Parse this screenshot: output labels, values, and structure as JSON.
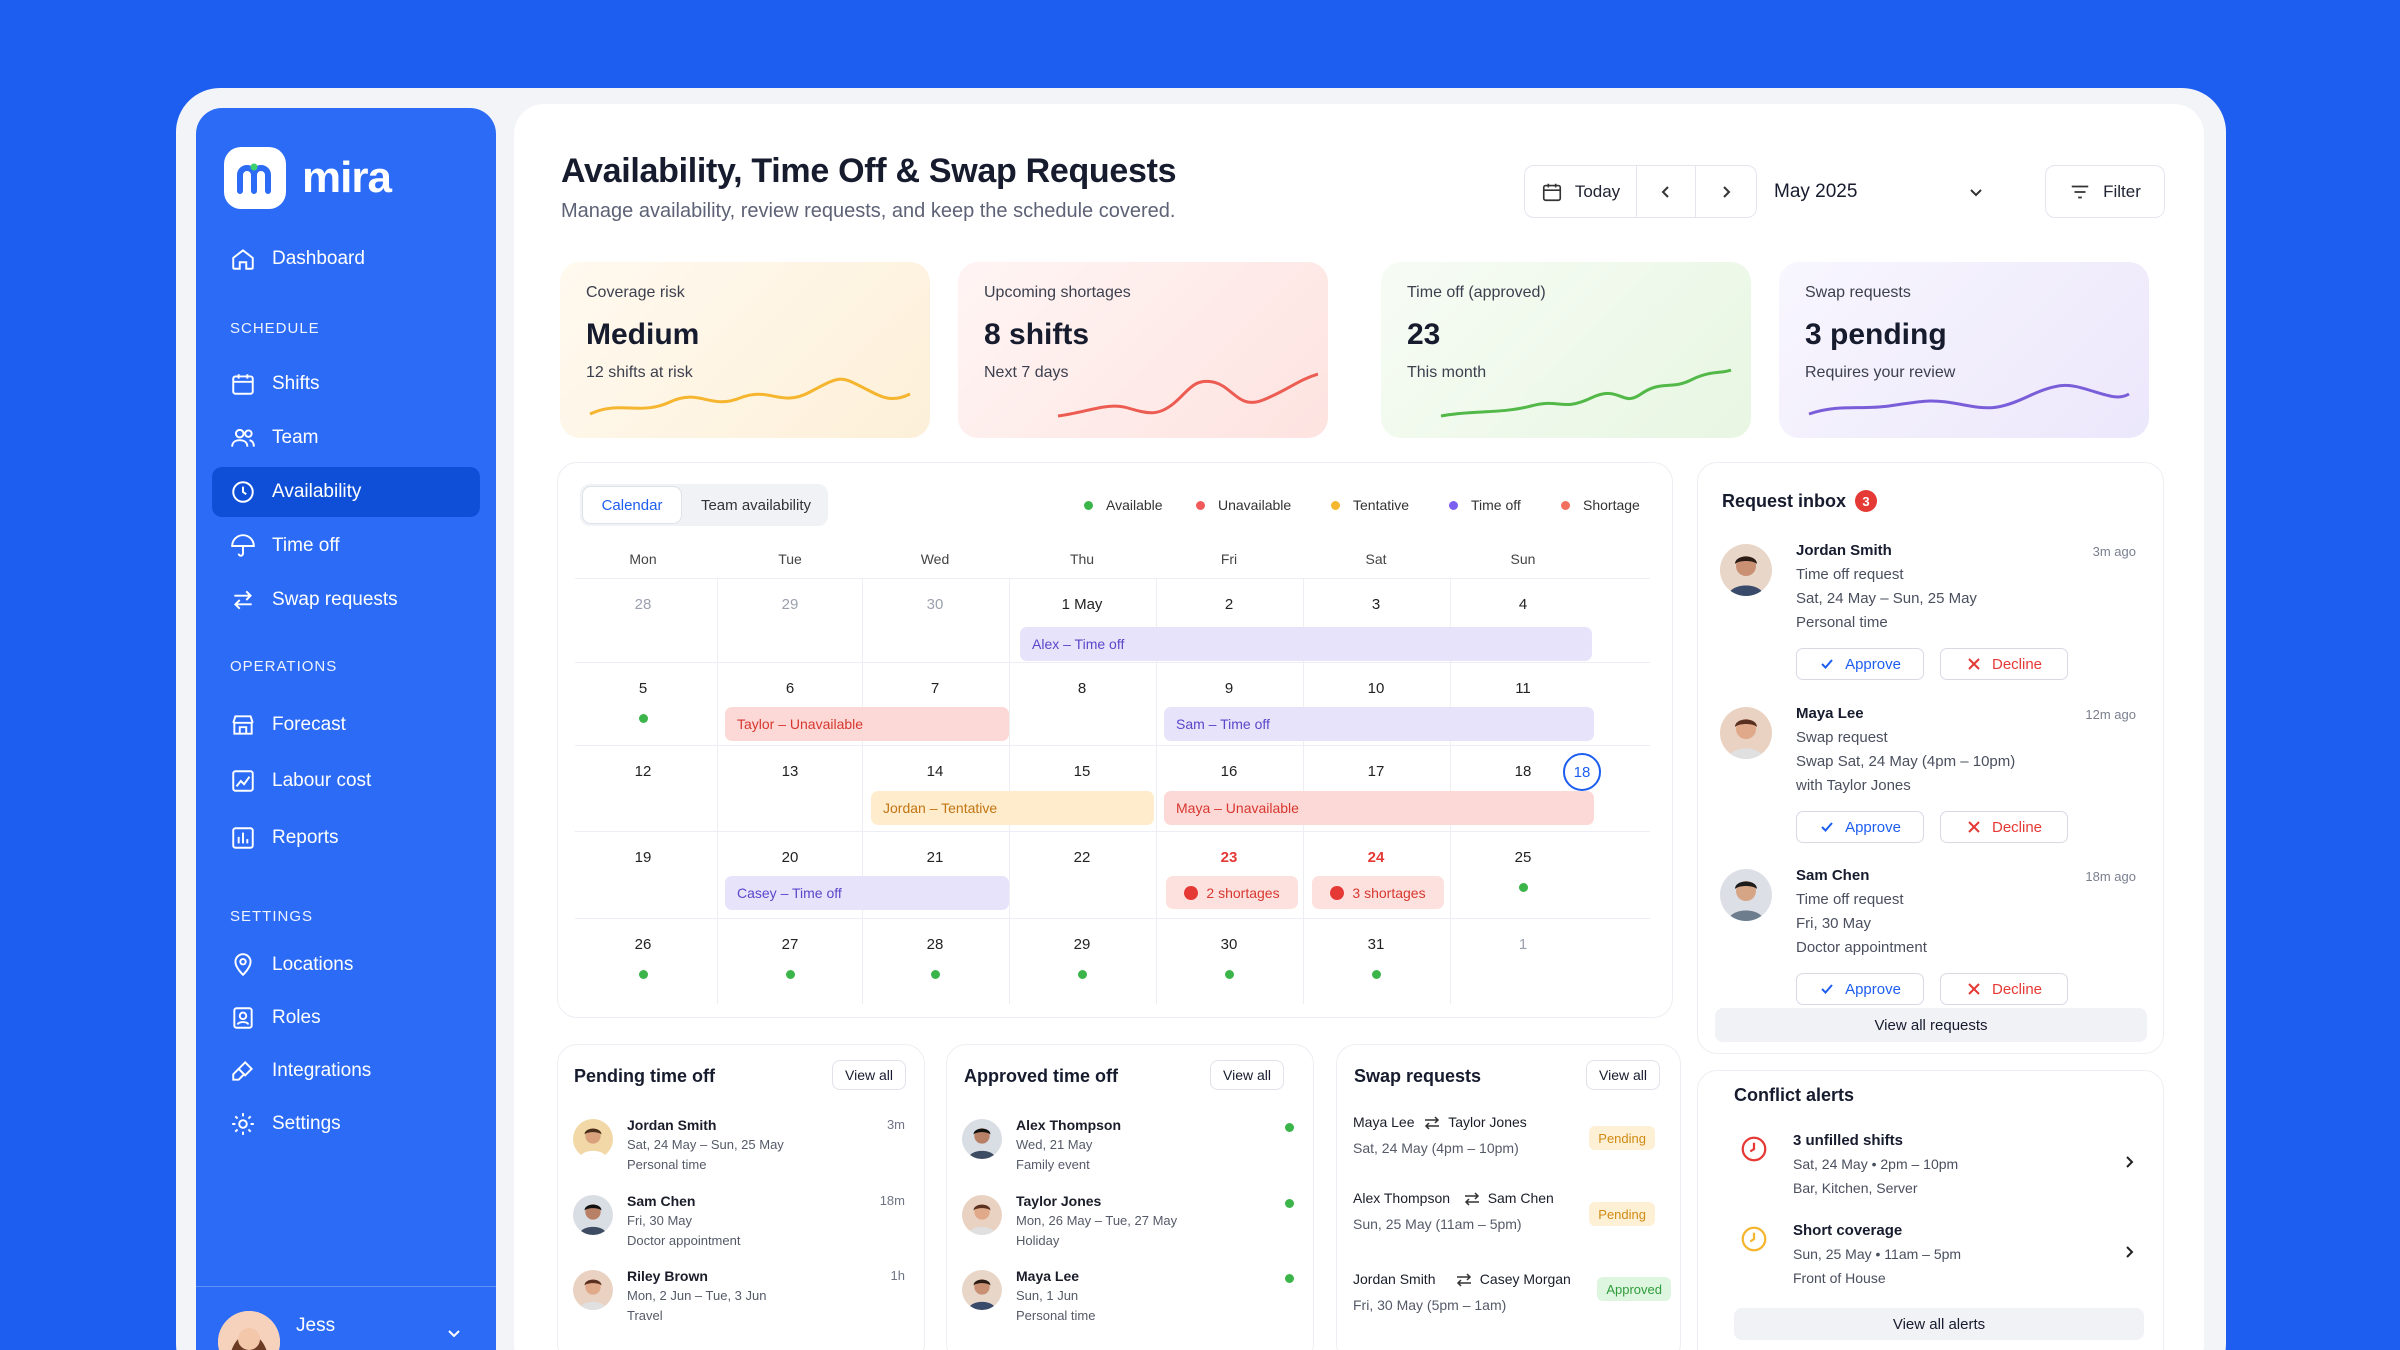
{
  "brand": {
    "name": "mira"
  },
  "nav": {
    "dashboard": "Dashboard",
    "schedule_section": "SCHEDULE",
    "shifts": "Shifts",
    "team": "Team",
    "availability": "Availability",
    "time_off": "Time off",
    "swap_requests": "Swap requests",
    "operations_section": "OPERATIONS",
    "forecast": "Forecast",
    "labour_cost": "Labour cost",
    "reports": "Reports",
    "settings_section": "SETTINGS",
    "locations": "Locations",
    "roles": "Roles",
    "integrations": "Integrations",
    "settings": "Settings"
  },
  "user": {
    "name": "Jess"
  },
  "header": {
    "title": "Availability, Time Off & Swap Requests",
    "subtitle": "Manage availability, review requests, and keep the schedule covered.",
    "today": "Today",
    "month": "May 2025",
    "filter": "Filter"
  },
  "stats": [
    {
      "label": "Coverage risk",
      "value": "Medium",
      "note": "12 shifts at risk",
      "color": "#f5b52e"
    },
    {
      "label": "Upcoming shortages",
      "value": "8 shifts",
      "note": "Next 7 days",
      "color": "#ec5c52"
    },
    {
      "label": "Time off (approved)",
      "value": "23",
      "note": "This month",
      "color": "#52b848"
    },
    {
      "label": "Swap requests",
      "value": "3 pending",
      "note": "Requires your review",
      "color": "#7a5ed9"
    }
  ],
  "calendar": {
    "tabs": [
      "Calendar",
      "Team availability"
    ],
    "legend": [
      {
        "label": "Available",
        "color": "#3bb54a"
      },
      {
        "label": "Unavailable",
        "color": "#f05a5a"
      },
      {
        "label": "Tentative",
        "color": "#f5b72e"
      },
      {
        "label": "Time off",
        "color": "#7b5ff0"
      },
      {
        "label": "Shortage",
        "color": "#f2705e"
      }
    ],
    "weekdays": [
      "Mon",
      "Tue",
      "Wed",
      "Thu",
      "Fri",
      "Sat",
      "Sun"
    ],
    "weeks": [
      [
        "28",
        "29",
        "30",
        "1 May",
        "2",
        "3",
        "4"
      ],
      [
        "5",
        "6",
        "7",
        "8",
        "9",
        "10",
        "11"
      ],
      [
        "12",
        "13",
        "14",
        "15",
        "16",
        "17",
        "18"
      ],
      [
        "19",
        "20",
        "21",
        "22",
        "23",
        "24",
        "25"
      ],
      [
        "26",
        "27",
        "28",
        "29",
        "30",
        "31",
        "1"
      ]
    ],
    "today_marker": "18",
    "events": {
      "alex": "Alex – Time off",
      "taylor": "Taylor – Unavailable",
      "sam": "Sam – Time off",
      "jordan": "Jordan – Tentative",
      "maya": "Maya – Unavailable",
      "casey": "Casey – Time off",
      "shortage_23": "2 shortages",
      "shortage_24": "3 shortages"
    }
  },
  "inbox": {
    "title": "Request inbox",
    "count": "3",
    "approve": "Approve",
    "decline": "Decline",
    "view_all": "View all requests",
    "items": [
      {
        "name": "Jordan Smith",
        "time": "3m ago",
        "type": "Time off request",
        "detail": "Sat, 24 May – Sun, 25 May",
        "note": "Personal time"
      },
      {
        "name": "Maya Lee",
        "time": "12m ago",
        "type": "Swap request",
        "detail": "Swap Sat, 24 May (4pm – 10pm)",
        "note": "with Taylor Jones"
      },
      {
        "name": "Sam Chen",
        "time": "18m ago",
        "type": "Time off request",
        "detail": "Fri, 30 May",
        "note": "Doctor appointment"
      }
    ]
  },
  "pending": {
    "title": "Pending time off",
    "view_all": "View all",
    "items": [
      {
        "name": "Jordan Smith",
        "dates": "Sat, 24 May – Sun, 25 May",
        "reason": "Personal time",
        "age": "3m"
      },
      {
        "name": "Sam Chen",
        "dates": "Fri, 30 May",
        "reason": "Doctor appointment",
        "age": "18m"
      },
      {
        "name": "Riley Brown",
        "dates": "Mon, 2 Jun – Tue, 3 Jun",
        "reason": "Travel",
        "age": "1h"
      }
    ]
  },
  "approved": {
    "title": "Approved time off",
    "view_all": "View all",
    "items": [
      {
        "name": "Alex Thompson",
        "dates": "Wed, 21 May",
        "reason": "Family event"
      },
      {
        "name": "Taylor Jones",
        "dates": "Mon, 26 May – Tue, 27 May",
        "reason": "Holiday"
      },
      {
        "name": "Maya Lee",
        "dates": "Sun, 1 Jun",
        "reason": "Personal time"
      }
    ]
  },
  "swaps": {
    "title": "Swap requests",
    "view_all": "View all",
    "items": [
      {
        "from": "Maya Lee",
        "to": "Taylor Jones",
        "shift": "Sat, 24 May (4pm – 10pm)",
        "status": "Pending"
      },
      {
        "from": "Alex Thompson",
        "to": "Sam Chen",
        "shift": "Sun, 25 May (11am – 5pm)",
        "status": "Pending"
      },
      {
        "from": "Jordan Smith",
        "to": "Casey Morgan",
        "shift": "Fri, 30 May (5pm – 1am)",
        "status": "Approved"
      }
    ]
  },
  "conflicts": {
    "title": "Conflict alerts",
    "view_all": "View all alerts",
    "items": [
      {
        "title": "3 unfilled shifts",
        "time": "Sat, 24 May • 2pm – 10pm",
        "where": "Bar, Kitchen, Server",
        "icon": "clock-icon",
        "color": "#e53935"
      },
      {
        "title": "Short coverage",
        "time": "Sun, 25 May • 11am – 5pm",
        "where": "Front of House",
        "icon": "clock-icon",
        "color": "#f5b52e"
      }
    ]
  }
}
